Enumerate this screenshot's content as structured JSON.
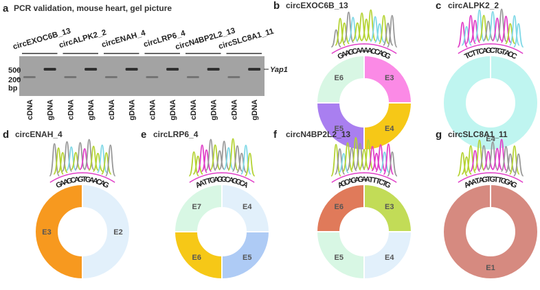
{
  "gel": {
    "panel_label": "a",
    "title": "PCR validation, mouse heart, gel picture",
    "genes": [
      "circEXOC6B_13",
      "circALPK2_2",
      "circENAH_4",
      "circLRP6_4",
      "circN4BP2L2_13",
      "circSLC8A1_11"
    ],
    "size_markers": [
      "500",
      "200"
    ],
    "size_unit": "bp",
    "band_label": "Yap1",
    "lanes": [
      "cDNA",
      "gDNA",
      "cDNA",
      "gDNA",
      "cDNA",
      "gDNA",
      "cDNA",
      "gDNA",
      "cDNA",
      "gDNA",
      "cDNA",
      "gDNA"
    ]
  },
  "base_colors": {
    "A": "#b5d334",
    "C": "#7fd8e6",
    "G": "#999999",
    "T": "#e040c8"
  },
  "chart_data": [
    {
      "type": "pie",
      "panel_label": "b",
      "title": "circEXOC6B_13",
      "sequence": "GAAGCAAAACCAGG",
      "categories": [
        "E3",
        "E4",
        "E5",
        "E6"
      ],
      "values": [
        25,
        25,
        25,
        25
      ],
      "colors": [
        "#fb8ae6",
        "#f6c817",
        "#a97ff0",
        "#d8f7e4"
      ]
    },
    {
      "type": "pie",
      "panel_label": "c",
      "title": "circALPK2_2",
      "sequence": "TCTTCAGCTGTACC",
      "categories": [
        "E4"
      ],
      "values": [
        100
      ],
      "colors": [
        "#bff5f0"
      ]
    },
    {
      "type": "pie",
      "panel_label": "d",
      "title": "circENAH_4",
      "sequence": "GAAGCAGTGAACAG",
      "categories": [
        "E2",
        "E3"
      ],
      "values": [
        50,
        50
      ],
      "colors": [
        "#e2f0fb",
        "#f7991f"
      ]
    },
    {
      "type": "pie",
      "panel_label": "e",
      "title": "circLRP6_4",
      "sequence": "AATTGAGGCAGGCA",
      "categories": [
        "E4",
        "E5",
        "E6",
        "E7"
      ],
      "values": [
        25,
        25,
        25,
        25
      ],
      "colors": [
        "#e2f0fb",
        "#aecbf5",
        "#f6c817",
        "#d8f7e4"
      ]
    },
    {
      "type": "pie",
      "panel_label": "f",
      "title": "circN4BP2L2_13",
      "sequence": "AGCAGAGAATTTCTG",
      "categories": [
        "E3",
        "E4",
        "E5",
        "E6"
      ],
      "values": [
        25,
        25,
        25,
        25
      ],
      "colors": [
        "#c2dc57",
        "#e2f0fb",
        "#d8f7e4",
        "#e07a5a"
      ]
    },
    {
      "type": "pie",
      "panel_label": "g",
      "title": "circSLC8A1_11",
      "sequence": "AAATAGTGTTGGAG",
      "categories": [
        "E1"
      ],
      "values": [
        100
      ],
      "colors": [
        "#d68a80"
      ]
    }
  ]
}
